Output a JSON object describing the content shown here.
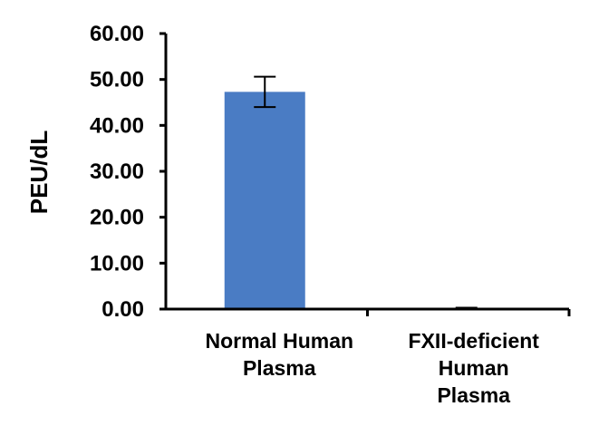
{
  "chart_data": {
    "type": "bar",
    "title": "",
    "xlabel": "",
    "ylabel": "PEU/dL",
    "ylim": [
      0,
      60
    ],
    "yticks": [
      "0.00",
      "10.00",
      "20.00",
      "30.00",
      "40.00",
      "50.00",
      "60.00"
    ],
    "ytick_values": [
      0,
      10,
      20,
      30,
      40,
      50,
      60
    ],
    "categories": [
      [
        "Normal Human",
        "Plasma"
      ],
      [
        "FXII-deficient",
        "Human",
        "Plasma"
      ]
    ],
    "values": [
      47.3,
      0.2
    ],
    "errors": [
      3.3,
      0.1
    ],
    "bar_color": "#4a7cc4",
    "grid": false
  }
}
